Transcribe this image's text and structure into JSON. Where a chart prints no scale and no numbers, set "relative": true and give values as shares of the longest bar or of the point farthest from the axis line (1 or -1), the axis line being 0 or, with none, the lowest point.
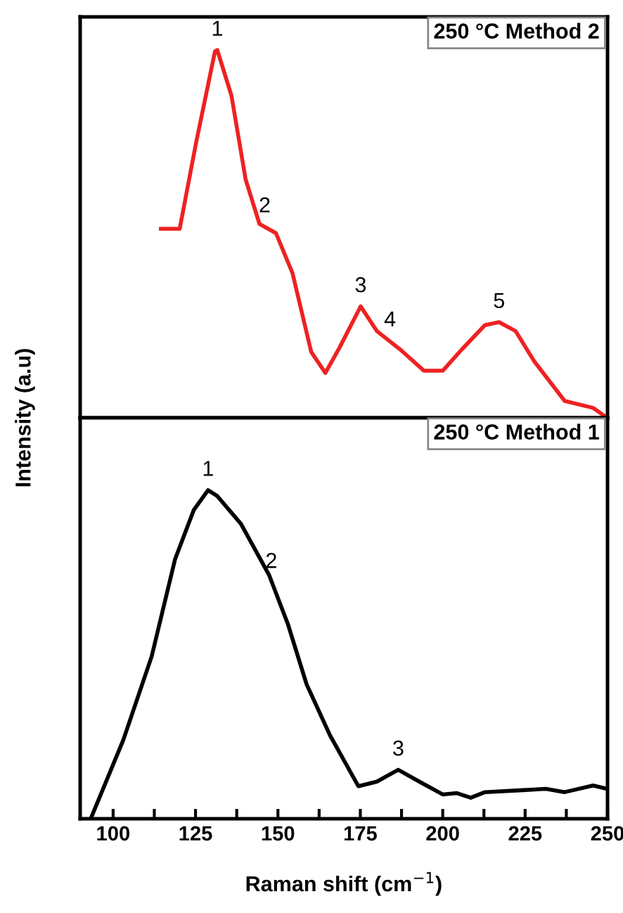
{
  "chart_data": [
    {
      "type": "line",
      "title": "250 °C Method 2",
      "ylabel": "Intensity (a.u)",
      "relative": true,
      "xlim": [
        90,
        250
      ],
      "tick_labels": false,
      "grid": false,
      "legend": false,
      "marker": "none",
      "line_style": "solid",
      "x": [
        114.5,
        120.2,
        125.2,
        130.9,
        131.6,
        135.9,
        140.2,
        144.4,
        149.4,
        154.4,
        160.1,
        164.4,
        168.7,
        175.1,
        180.0,
        187.2,
        194.3,
        200.0,
        205.7,
        212.8,
        217.1,
        222.1,
        227.8,
        237.0,
        245.6,
        249.9
      ],
      "series": [
        {
          "color": "#ee2222",
          "values": [
            0.514,
            0.514,
            0.749,
            0.996,
            1.0,
            0.876,
            0.648,
            0.527,
            0.502,
            0.394,
            0.179,
            0.122,
            0.191,
            0.303,
            0.236,
            0.185,
            0.128,
            0.128,
            0.185,
            0.252,
            0.26,
            0.236,
            0.153,
            0.046,
            0.027,
            0.0
          ]
        }
      ],
      "annotations": [
        {
          "text": "1",
          "x": 131.6,
          "y": 1.0
        },
        {
          "text": "2",
          "x": 146,
          "y": 0.52
        },
        {
          "text": "3",
          "x": 175.1,
          "y": 0.303
        },
        {
          "text": "4",
          "x": 184,
          "y": 0.21
        },
        {
          "text": "5",
          "x": 217.1,
          "y": 0.26
        }
      ]
    },
    {
      "type": "line",
      "title": "250 °C Method 1",
      "xlabel": "Raman shift (cm$^{−1}$)",
      "relative": true,
      "xlim": [
        90,
        250
      ],
      "tick_labels": "x",
      "grid": false,
      "legend": false,
      "marker": "none",
      "line_style": "solid",
      "xticks": [
        100,
        {
          "value": 112.5,
          "label": null
        },
        125,
        {
          "value": 137.5,
          "label": null
        },
        150,
        {
          "value": 162.5,
          "label": null
        },
        175,
        {
          "value": 187.5,
          "label": null
        },
        200,
        {
          "value": 212.5,
          "label": null
        },
        225,
        {
          "value": 237.5,
          "label": null
        },
        250
      ],
      "x": [
        93.2,
        103.1,
        111.7,
        118.8,
        124.5,
        128.8,
        131.6,
        138.8,
        147.3,
        153.0,
        158.7,
        165.8,
        174.4,
        180.0,
        186.5,
        192.9,
        200.0,
        204.3,
        208.5,
        212.8,
        224.2,
        231.3,
        237.0,
        245.6,
        249.9
      ],
      "series": [
        {
          "color": "#000000",
          "values": [
            0.0,
            0.24,
            0.494,
            0.79,
            0.94,
            1.0,
            0.982,
            0.897,
            0.742,
            0.593,
            0.409,
            0.254,
            0.099,
            0.113,
            0.149,
            0.113,
            0.074,
            0.078,
            0.064,
            0.081,
            0.087,
            0.091,
            0.081,
            0.101,
            0.091
          ]
        }
      ],
      "annotations": [
        {
          "text": "1",
          "x": 128.8,
          "y": 1.0
        },
        {
          "text": "2",
          "x": 148,
          "y": 0.72
        },
        {
          "text": "3",
          "x": 186.5,
          "y": 0.149
        }
      ]
    }
  ]
}
